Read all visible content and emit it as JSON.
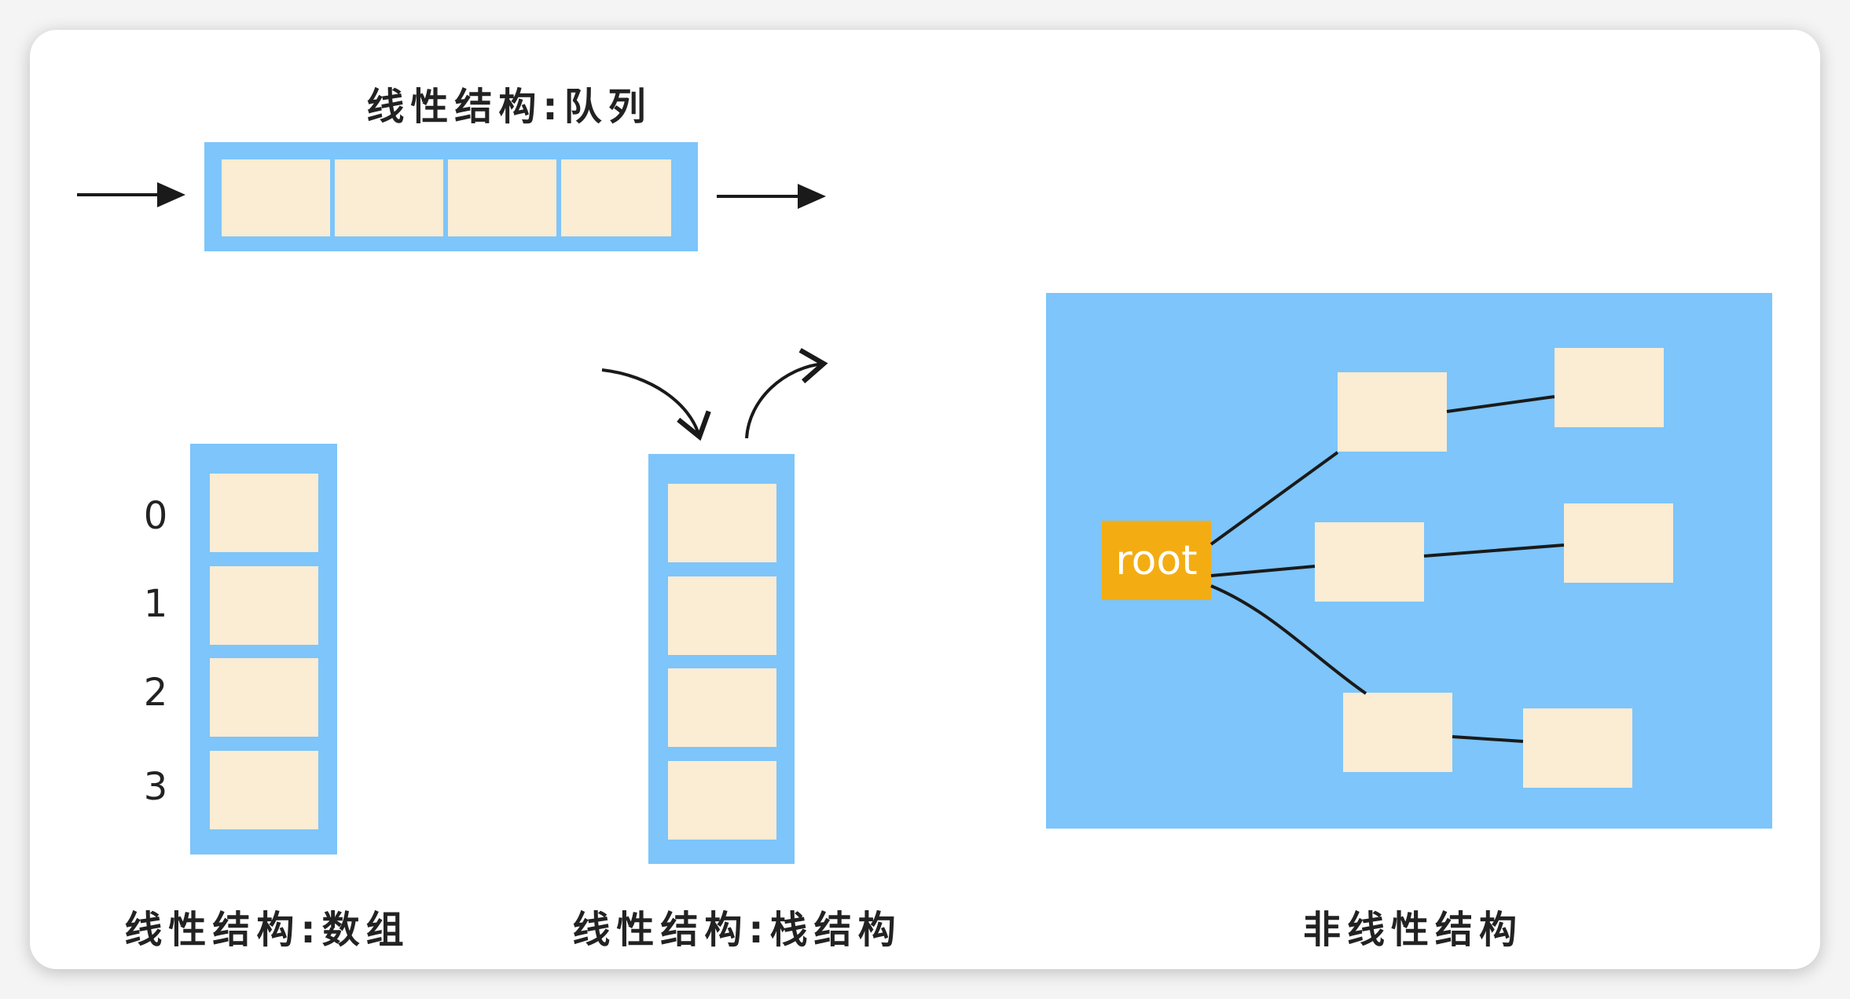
{
  "queue": {
    "caption": "线性结构:队列"
  },
  "array": {
    "caption": "线性结构:数组",
    "indices": [
      "0",
      "1",
      "2",
      "3"
    ]
  },
  "stack": {
    "caption": "线性结构:栈结构"
  },
  "tree": {
    "caption": "非线性结构",
    "root_label": "root"
  },
  "colors": {
    "frame_blue": "#7dc5fa",
    "cell_cream": "#fbecd4",
    "root_orange": "#f3ad13",
    "line_black": "#1a1a1a"
  }
}
